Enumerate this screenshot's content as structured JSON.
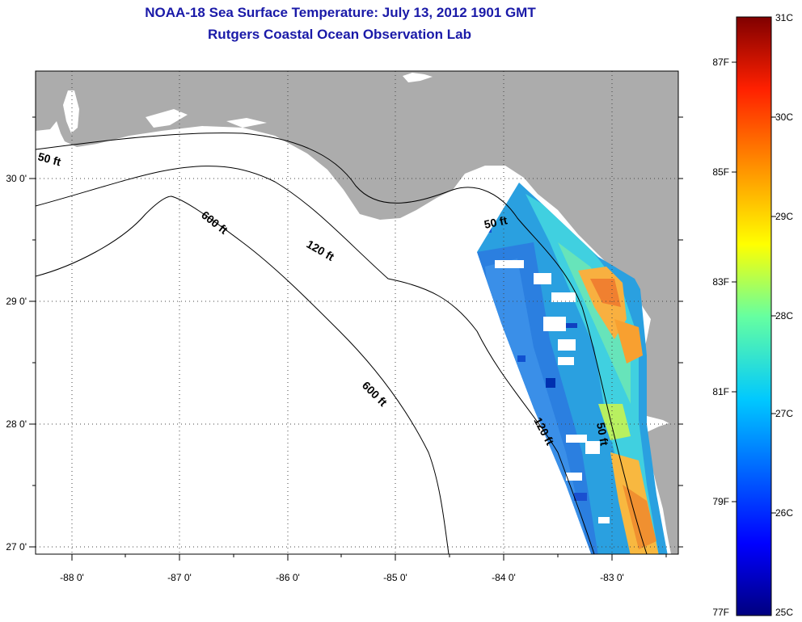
{
  "title": {
    "line1": "NOAA-18 Sea Surface Temperature:  July 13, 2012 1901 GMT",
    "line2": "Rutgers Coastal Ocean Observation Lab"
  },
  "map": {
    "lon_ticks": [
      "-88 0'",
      "-87 0'",
      "-86 0'",
      "-85 0'",
      "-84 0'",
      "-83 0'"
    ],
    "lat_ticks": [
      "30 0'",
      "29 0'",
      "28 0'",
      "27 0'"
    ],
    "contour_labels": {
      "c50_west": "50 ft",
      "c50_bigbend": "50 ft",
      "c50_south": "50 ft",
      "c120_north": "120 ft",
      "c120_south": "120 ft",
      "c600_north": "600 ft",
      "c600_south": "600 ft"
    },
    "colors": {
      "land": "#acacac",
      "ocean_nodata": "#ffffff",
      "grid": "#444444"
    }
  },
  "colorbar": {
    "fahrenheit_labels": [
      "87F",
      "85F",
      "83F",
      "81F",
      "79F",
      "77F"
    ],
    "celsius_labels": [
      "31C",
      "30C",
      "29C",
      "28C",
      "27C",
      "26C",
      "25C"
    ],
    "colormap": "jet",
    "range_c": [
      25,
      31
    ]
  }
}
